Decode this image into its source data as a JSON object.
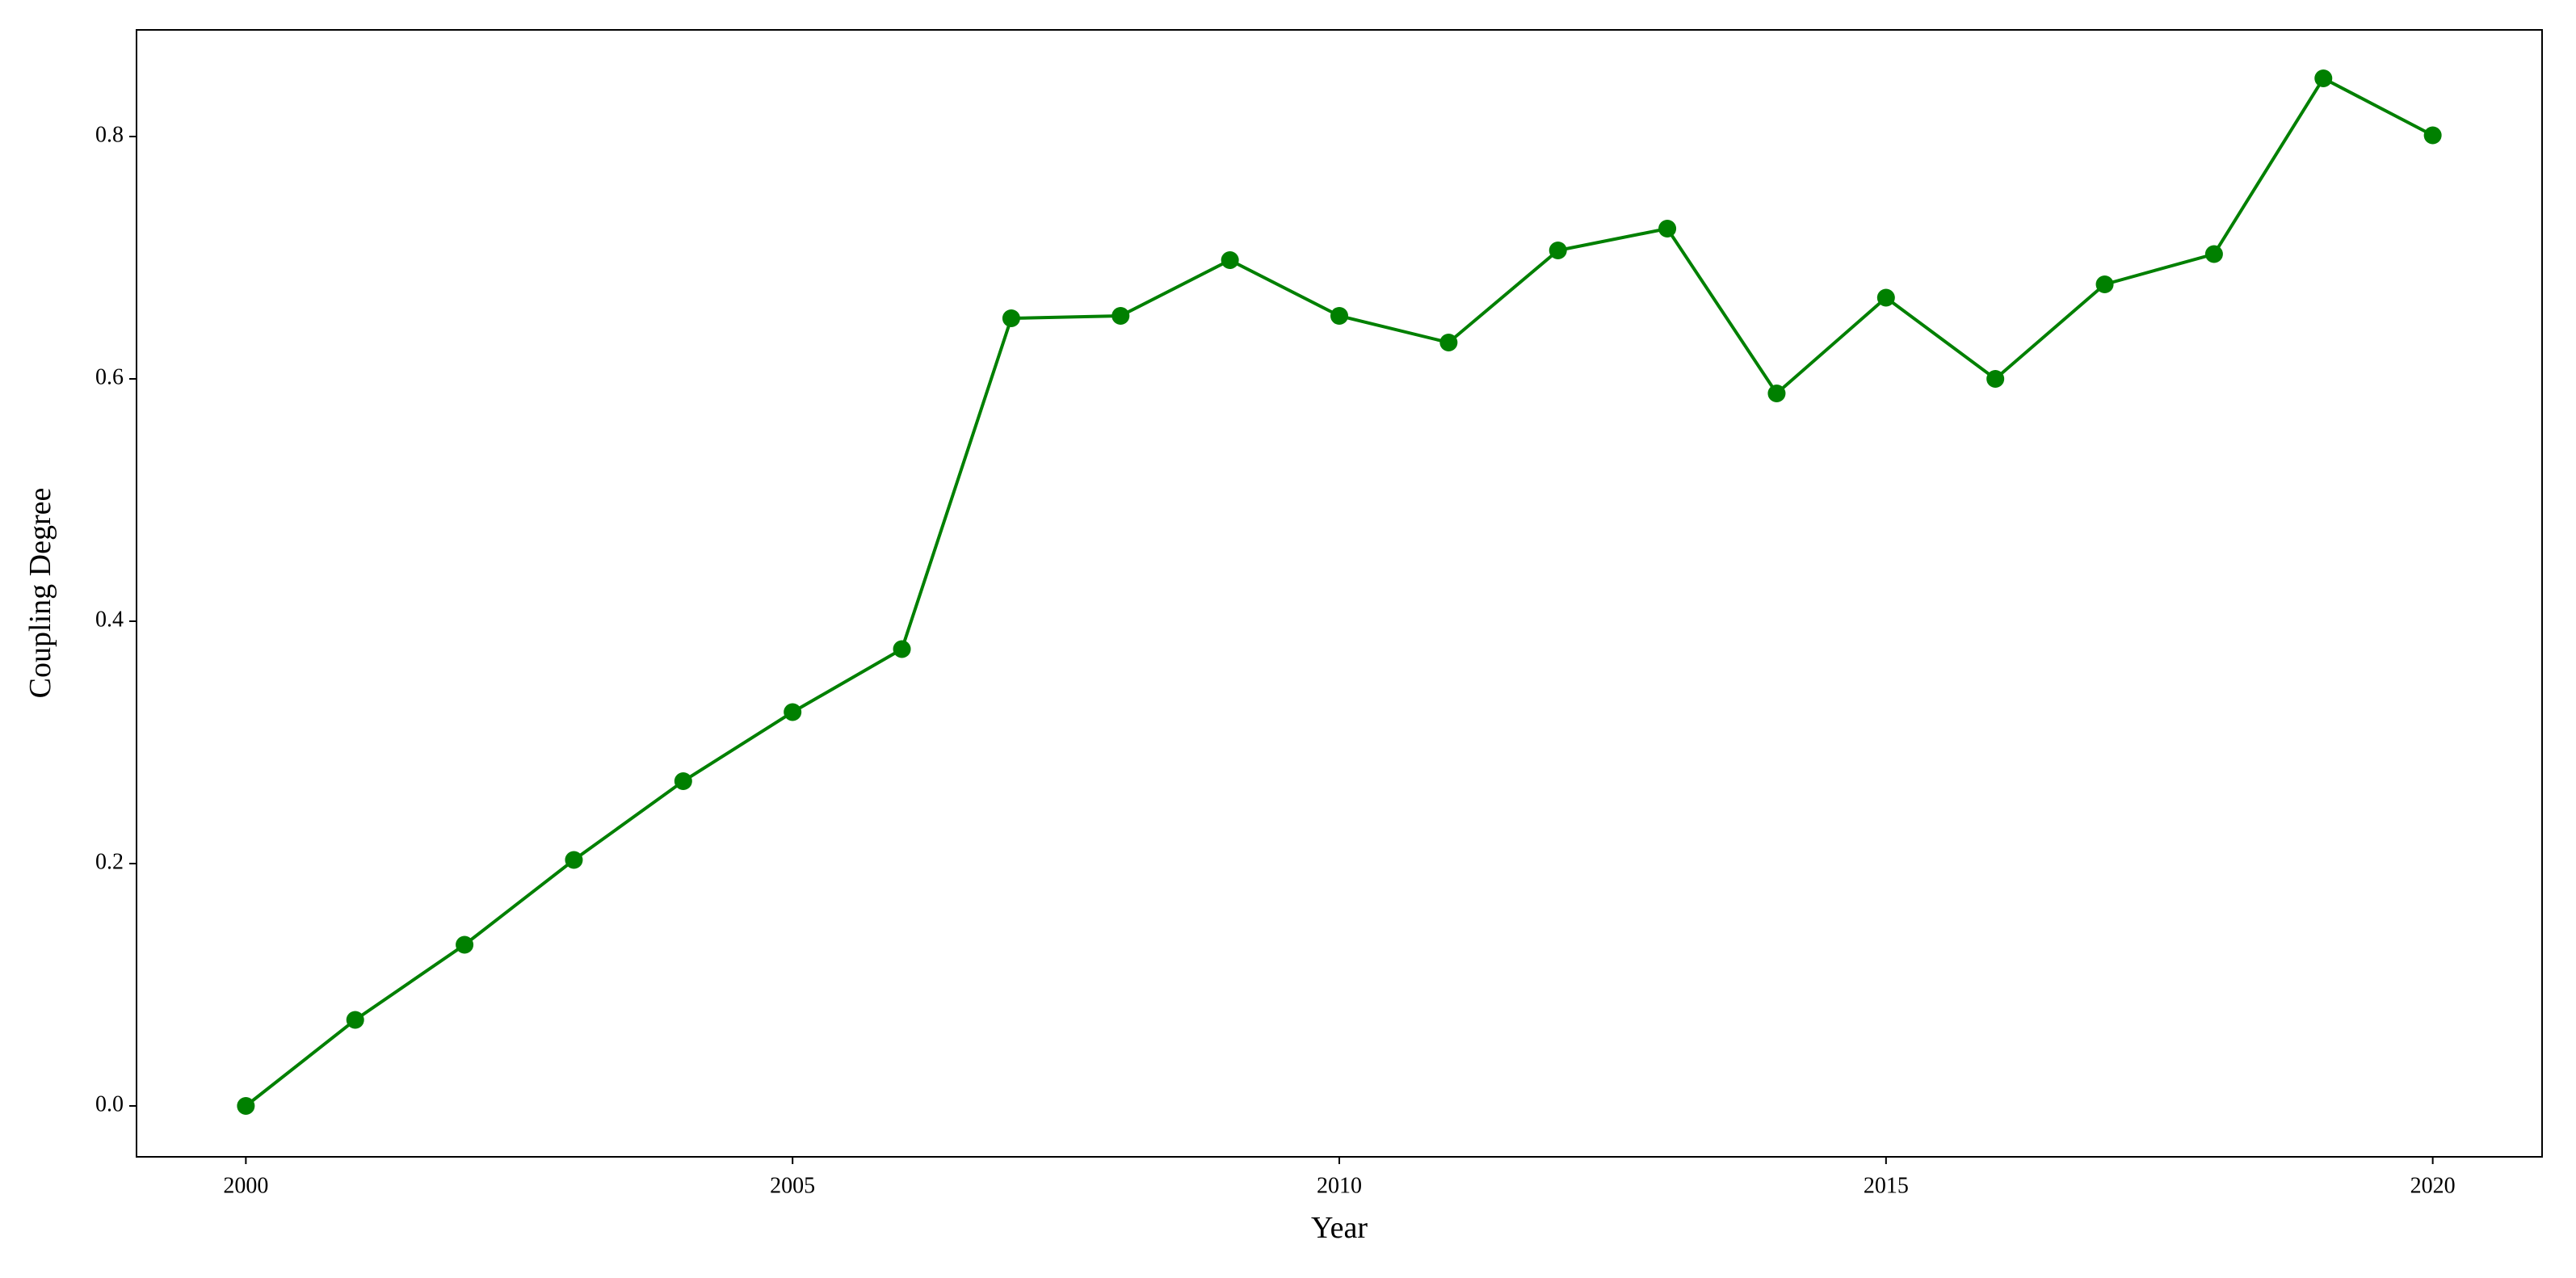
{
  "chart_data": {
    "type": "line",
    "x_label": "Year",
    "y_label": "Coupling Degree",
    "x": [
      2000,
      2001,
      2002,
      2003,
      2004,
      2005,
      2006,
      2007,
      2008,
      2009,
      2010,
      2011,
      2012,
      2013,
      2014,
      2015,
      2016,
      2017,
      2018,
      2019,
      2020
    ],
    "series": [
      {
        "color": "#008000",
        "values": [
          0,
          0.071,
          0.133,
          0.203,
          0.268,
          0.325,
          0.377,
          0.65,
          0.652,
          0.698,
          0.652,
          0.63,
          0.706,
          0.724,
          0.588,
          0.667,
          0.6,
          0.678,
          0.703,
          0.848,
          0.801
        ]
      }
    ],
    "xlim": [
      1999,
      2021
    ],
    "xticks": [
      2000,
      2005,
      2010,
      2015,
      2020
    ],
    "ylim": [
      -0.042,
      0.888
    ],
    "yticks": [
      {
        "value": 0,
        "label": "0.0"
      },
      0.2,
      0.4,
      0.6,
      0.8
    ],
    "grid": false
  }
}
